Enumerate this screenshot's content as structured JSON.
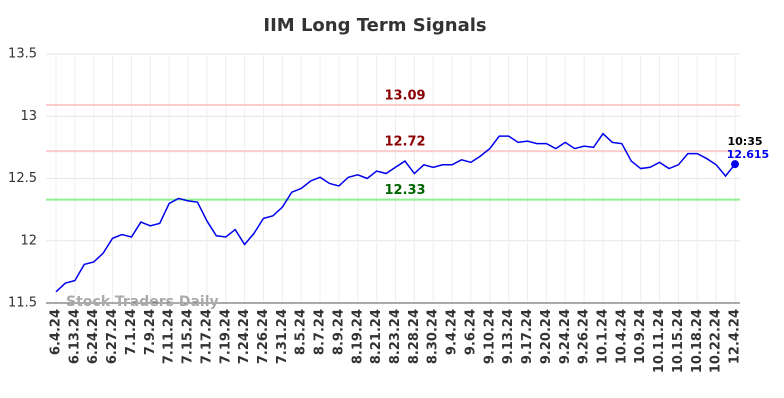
{
  "chart_data": {
    "type": "line",
    "title": "IIM Long Term Signals",
    "categories": [
      "6.4.24",
      null,
      "6.13.24",
      null,
      "6.24.24",
      null,
      "6.27.24",
      null,
      "7.1.24",
      null,
      "7.9.24",
      null,
      "7.11.24",
      null,
      "7.15.24",
      null,
      "7.17.24",
      null,
      "7.19.24",
      null,
      "7.24.24",
      null,
      "7.26.24",
      null,
      "7.31.24",
      null,
      "8.5.24",
      null,
      "8.7.24",
      null,
      "8.9.24",
      null,
      "8.19.24",
      null,
      "8.21.24",
      null,
      "8.23.24",
      null,
      "8.28.24",
      null,
      "8.30.24",
      null,
      "9.4.24",
      null,
      "9.6.24",
      null,
      "9.10.24",
      null,
      "9.13.24",
      null,
      "9.17.24",
      null,
      "9.20.24",
      null,
      "9.24.24",
      null,
      "9.26.24",
      null,
      "10.1.24",
      null,
      "10.4.24",
      null,
      "10.9.24",
      null,
      "10.11.24",
      null,
      "10.15.24",
      null,
      "10.18.24",
      null,
      "10.22.24",
      null,
      "12.4.24"
    ],
    "values": [
      11.59,
      11.66,
      11.68,
      11.81,
      11.83,
      11.9,
      12.02,
      12.05,
      12.03,
      12.15,
      12.12,
      12.14,
      12.3,
      12.34,
      12.32,
      12.31,
      12.16,
      12.04,
      12.03,
      12.09,
      11.97,
      12.06,
      12.18,
      12.2,
      12.27,
      12.39,
      12.42,
      12.48,
      12.51,
      12.46,
      12.44,
      12.51,
      12.53,
      12.5,
      12.56,
      12.54,
      12.59,
      12.64,
      12.54,
      12.61,
      12.59,
      12.61,
      12.61,
      12.65,
      12.63,
      12.68,
      12.74,
      12.84,
      12.84,
      12.79,
      12.8,
      12.78,
      12.78,
      12.74,
      12.79,
      12.74,
      12.76,
      12.75,
      12.86,
      12.79,
      12.78,
      12.64,
      12.58,
      12.59,
      12.63,
      12.58,
      12.61,
      12.7,
      12.7,
      12.66,
      12.61,
      12.52,
      12.615
    ],
    "color": "#0000ee",
    "ylim": [
      11.5,
      13.5
    ],
    "yticks": [
      11.5,
      12,
      12.5,
      13,
      13.5
    ],
    "grid": true,
    "hlines": [
      {
        "value": 13.09,
        "color": "#ffcccc",
        "label_color": "#8b0000"
      },
      {
        "value": 12.72,
        "color": "#ffcccc",
        "label_color": "#8b0000"
      },
      {
        "value": 12.33,
        "color": "#90ee90",
        "label_color": "#006400"
      }
    ],
    "last_time": "10:35",
    "watermark": "Stock Traders Daily"
  }
}
